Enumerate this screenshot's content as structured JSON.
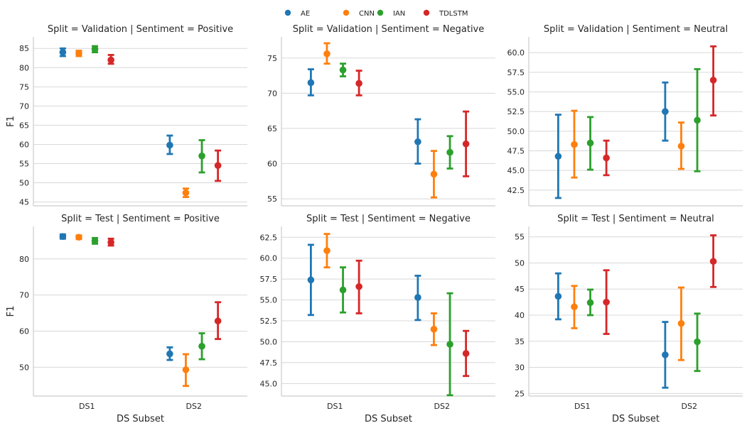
{
  "legend": [
    {
      "name": "AE",
      "color": "#1f77b4"
    },
    {
      "name": "CNN",
      "color": "#ff7f0e"
    },
    {
      "name": "IAN",
      "color": "#2ca02c"
    },
    {
      "name": "TDLSTM",
      "color": "#d62728"
    }
  ],
  "chart_data": [
    {
      "type": "point",
      "title": "Split = Validation | Sentiment = Positive",
      "ylabel": "F1",
      "xlabel": "",
      "categories": [
        "DS1",
        "DS2"
      ],
      "ylim": [
        44,
        88
      ],
      "yticks": [
        45,
        50,
        55,
        60,
        65,
        70,
        75,
        80,
        85
      ],
      "ytick_labels": [
        "45",
        "50",
        "55",
        "60",
        "65",
        "70",
        "75",
        "80",
        "85"
      ],
      "grid": true,
      "series": [
        {
          "name": "AE",
          "values": [
            84.0,
            59.8
          ],
          "ci": [
            [
              83.0,
              85.0
            ],
            [
              57.5,
              62.3
            ]
          ]
        },
        {
          "name": "CNN",
          "values": [
            83.7,
            47.4
          ],
          "ci": [
            [
              83.0,
              84.4
            ],
            [
              46.3,
              48.5
            ]
          ]
        },
        {
          "name": "IAN",
          "values": [
            84.8,
            57.0
          ],
          "ci": [
            [
              84.0,
              85.6
            ],
            [
              52.7,
              61.1
            ]
          ]
        },
        {
          "name": "TDLSTM",
          "values": [
            82.0,
            54.5
          ],
          "ci": [
            [
              81.0,
              83.3
            ],
            [
              50.5,
              58.4
            ]
          ]
        }
      ]
    },
    {
      "type": "point",
      "title": "Split = Validation | Sentiment = Negative",
      "ylabel": "",
      "xlabel": "",
      "categories": [
        "DS1",
        "DS2"
      ],
      "ylim": [
        54,
        78
      ],
      "yticks": [
        55,
        60,
        65,
        70,
        75
      ],
      "ytick_labels": [
        "55",
        "60",
        "65",
        "70",
        "75"
      ],
      "grid": true,
      "series": [
        {
          "name": "AE",
          "values": [
            71.5,
            63.1
          ],
          "ci": [
            [
              69.7,
              73.4
            ],
            [
              60.0,
              66.3
            ]
          ]
        },
        {
          "name": "CNN",
          "values": [
            75.6,
            58.5
          ],
          "ci": [
            [
              74.2,
              77.1
            ],
            [
              55.2,
              61.8
            ]
          ]
        },
        {
          "name": "IAN",
          "values": [
            73.3,
            61.6
          ],
          "ci": [
            [
              72.4,
              74.2
            ],
            [
              59.3,
              63.9
            ]
          ]
        },
        {
          "name": "TDLSTM",
          "values": [
            71.4,
            62.8
          ],
          "ci": [
            [
              69.7,
              73.2
            ],
            [
              58.2,
              67.4
            ]
          ]
        }
      ]
    },
    {
      "type": "point",
      "title": "Split = Validation | Sentiment = Neutral",
      "ylabel": "",
      "xlabel": "",
      "categories": [
        "DS1",
        "DS2"
      ],
      "ylim": [
        40.5,
        62.0
      ],
      "yticks": [
        42.5,
        45.0,
        47.5,
        50.0,
        52.5,
        55.0,
        57.5,
        60.0
      ],
      "ytick_labels": [
        "42.5",
        "45.0",
        "47.5",
        "50.0",
        "52.5",
        "55.0",
        "57.5",
        "60.0"
      ],
      "grid": true,
      "series": [
        {
          "name": "AE",
          "values": [
            46.8,
            52.5
          ],
          "ci": [
            [
              41.5,
              52.1
            ],
            [
              48.8,
              56.2
            ]
          ]
        },
        {
          "name": "CNN",
          "values": [
            48.3,
            48.1
          ],
          "ci": [
            [
              44.1,
              52.6
            ],
            [
              45.2,
              51.1
            ]
          ]
        },
        {
          "name": "IAN",
          "values": [
            48.5,
            51.4
          ],
          "ci": [
            [
              45.1,
              51.8
            ],
            [
              44.9,
              57.9
            ]
          ]
        },
        {
          "name": "TDLSTM",
          "values": [
            46.6,
            56.5
          ],
          "ci": [
            [
              44.4,
              48.8
            ],
            [
              52.0,
              60.8
            ]
          ]
        }
      ]
    },
    {
      "type": "point",
      "title": "Split = Test | Sentiment = Positive",
      "ylabel": "F1",
      "xlabel": "DS Subset",
      "categories": [
        "DS1",
        "DS2"
      ],
      "ylim": [
        42,
        89
      ],
      "yticks": [
        50,
        60,
        70,
        80
      ],
      "ytick_labels": [
        "50",
        "60",
        "70",
        "80"
      ],
      "grid": true,
      "series": [
        {
          "name": "AE",
          "values": [
            86.2,
            53.7
          ],
          "ci": [
            [
              85.6,
              86.8
            ],
            [
              52.0,
              55.5
            ]
          ]
        },
        {
          "name": "CNN",
          "values": [
            86.0,
            49.3
          ],
          "ci": [
            [
              85.5,
              86.5
            ],
            [
              44.8,
              53.6
            ]
          ]
        },
        {
          "name": "IAN",
          "values": [
            85.0,
            55.8
          ],
          "ci": [
            [
              84.2,
              85.8
            ],
            [
              52.2,
              59.4
            ]
          ]
        },
        {
          "name": "TDLSTM",
          "values": [
            84.6,
            62.8
          ],
          "ci": [
            [
              83.7,
              85.6
            ],
            [
              57.8,
              68.0
            ]
          ]
        }
      ]
    },
    {
      "type": "point",
      "title": "Split = Test | Sentiment = Negative",
      "ylabel": "",
      "xlabel": "DS Subset",
      "categories": [
        "DS1",
        "DS2"
      ],
      "ylim": [
        43.5,
        63.8
      ],
      "yticks": [
        45.0,
        47.5,
        50.0,
        52.5,
        55.0,
        57.5,
        60.0,
        62.5
      ],
      "ytick_labels": [
        "45.0",
        "47.5",
        "50.0",
        "52.5",
        "55.0",
        "57.5",
        "60.0",
        "62.5"
      ],
      "grid": true,
      "series": [
        {
          "name": "AE",
          "values": [
            57.4,
            55.3
          ],
          "ci": [
            [
              53.2,
              61.6
            ],
            [
              52.6,
              57.9
            ]
          ]
        },
        {
          "name": "CNN",
          "values": [
            60.9,
            51.5
          ],
          "ci": [
            [
              58.9,
              62.9
            ],
            [
              49.6,
              53.4
            ]
          ]
        },
        {
          "name": "IAN",
          "values": [
            56.2,
            49.7
          ],
          "ci": [
            [
              53.5,
              58.9
            ],
            [
              43.6,
              55.8
            ]
          ]
        },
        {
          "name": "TDLSTM",
          "values": [
            56.6,
            48.6
          ],
          "ci": [
            [
              53.4,
              59.7
            ],
            [
              45.9,
              51.3
            ]
          ]
        }
      ]
    },
    {
      "type": "point",
      "title": "Split = Test | Sentiment = Neutral",
      "ylabel": "",
      "xlabel": "DS Subset",
      "categories": [
        "DS1",
        "DS2"
      ],
      "ylim": [
        24.5,
        57.0
      ],
      "yticks": [
        25,
        30,
        35,
        40,
        45,
        50,
        55
      ],
      "ytick_labels": [
        "25",
        "30",
        "35",
        "40",
        "45",
        "50",
        "55"
      ],
      "grid": true,
      "series": [
        {
          "name": "AE",
          "values": [
            43.6,
            32.4
          ],
          "ci": [
            [
              39.2,
              48.0
            ],
            [
              26.1,
              38.7
            ]
          ]
        },
        {
          "name": "CNN",
          "values": [
            41.6,
            38.4
          ],
          "ci": [
            [
              37.5,
              45.6
            ],
            [
              31.4,
              45.3
            ]
          ]
        },
        {
          "name": "IAN",
          "values": [
            42.4,
            34.9
          ],
          "ci": [
            [
              40.0,
              44.9
            ],
            [
              29.3,
              40.3
            ]
          ]
        },
        {
          "name": "TDLSTM",
          "values": [
            42.5,
            50.3
          ],
          "ci": [
            [
              36.4,
              48.6
            ],
            [
              45.4,
              55.3
            ]
          ]
        }
      ]
    }
  ]
}
